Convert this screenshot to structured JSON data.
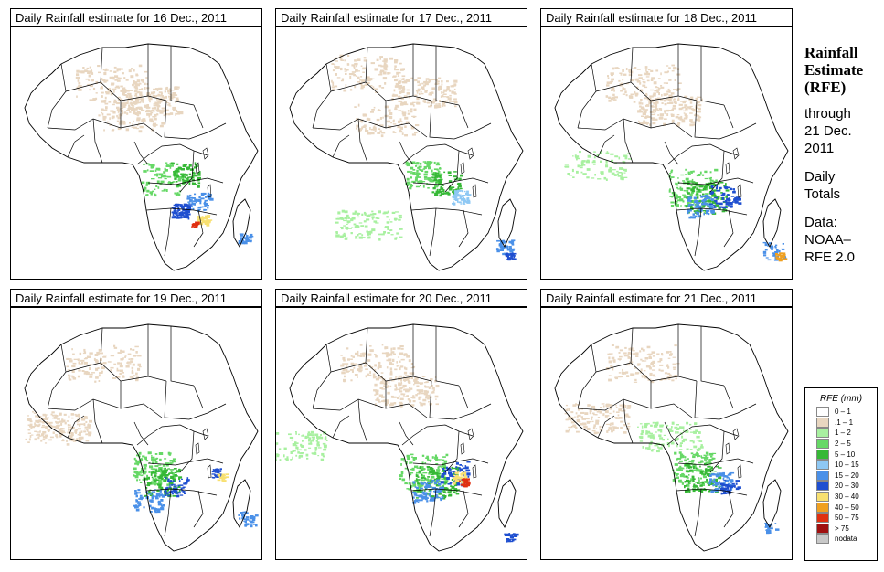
{
  "panels": [
    {
      "title": "Daily Rainfall estimate for  16 Dec., 2011",
      "scene": "a"
    },
    {
      "title": "Daily Rainfall estimate for  17 Dec., 2011",
      "scene": "b"
    },
    {
      "title": "Daily Rainfall estimate for  18 Dec., 2011",
      "scene": "c"
    },
    {
      "title": "Daily Rainfall estimate for  19 Dec., 2011",
      "scene": "d"
    },
    {
      "title": "Daily Rainfall estimate for  20 Dec., 2011",
      "scene": "e"
    },
    {
      "title": "Daily Rainfall estimate for  21 Dec., 2011",
      "scene": "f"
    }
  ],
  "side": {
    "heading_1": "Rainfall",
    "heading_2": "Estimate",
    "heading_3": "(RFE)",
    "through_1": "through",
    "through_2": "21 Dec.",
    "through_3": "2011",
    "totals_1": "Daily",
    "totals_2": "Totals",
    "data_1": "Data:",
    "data_2": "NOAA–",
    "data_3": "RFE 2.0"
  },
  "legend": {
    "title": "RFE (mm)",
    "items": [
      {
        "label": "0 – 1",
        "color": "#ffffff"
      },
      {
        "label": ".1 – 1",
        "color": "#e8d6c0"
      },
      {
        "label": "1 – 2",
        "color": "#a8f0a0"
      },
      {
        "label": "2 – 5",
        "color": "#66d866"
      },
      {
        "label": "5 – 10",
        "color": "#36b836"
      },
      {
        "label": "10 – 15",
        "color": "#8ec8f4"
      },
      {
        "label": "15 – 20",
        "color": "#4a90e8"
      },
      {
        "label": "20 – 30",
        "color": "#1f4fd0"
      },
      {
        "label": "30 – 40",
        "color": "#f8e070"
      },
      {
        "label": "40 – 50",
        "color": "#f0a020"
      },
      {
        "label": "50 – 75",
        "color": "#e03010"
      },
      {
        "label": "> 75",
        "color": "#a01010"
      },
      {
        "label": "nodata",
        "color": "#c8c8c8"
      }
    ]
  }
}
